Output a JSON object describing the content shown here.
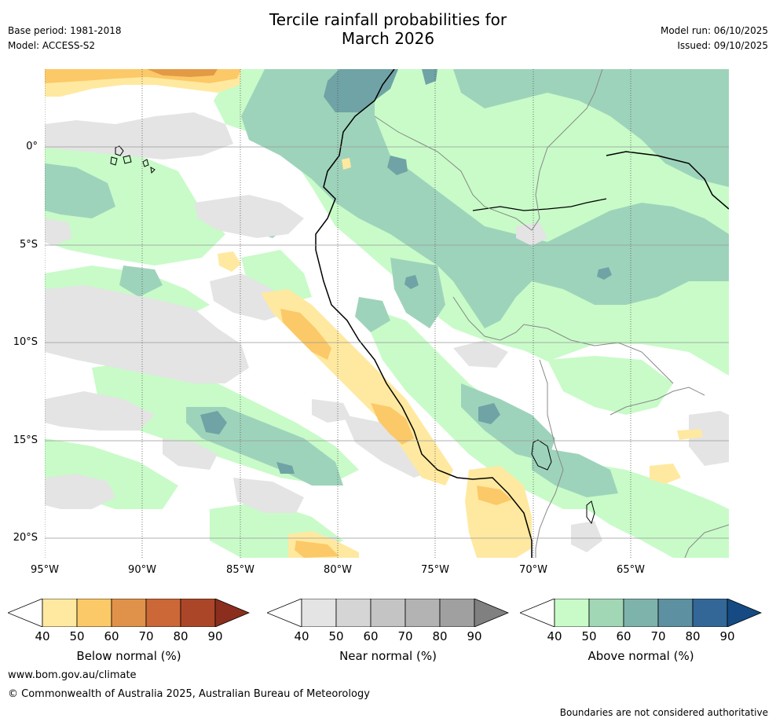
{
  "header": {
    "title_line1": "Tercile rainfall probabilities for",
    "title_line2": "March 2026",
    "base_period": "Base period: 1981-2018",
    "model": "Model: ACCESS-S2",
    "model_run": "Model run: 06/10/2025",
    "issued": "Issued: 09/10/2025"
  },
  "map": {
    "lat_labels": [
      "0°",
      "5°S",
      "10°S",
      "15°S",
      "20°S"
    ],
    "lon_labels": [
      "95°W",
      "90°W",
      "85°W",
      "80°W",
      "75°W",
      "70°W",
      "65°W"
    ],
    "colors": {
      "near_normal": "#e4e4e4",
      "above_40": "#c8fbc8",
      "above_50": "#9ed3bb",
      "above_60": "#6fa3a5",
      "below_40": "#ffe9a0",
      "below_50": "#fcc968",
      "below_60": "#e39a45",
      "country_border": "#888888",
      "coastline": "#000000"
    }
  },
  "colorbars": [
    {
      "label": "Below normal (%)",
      "ticks": [
        "40",
        "50",
        "60",
        "70",
        "80",
        "90"
      ],
      "colors": [
        "#ffe9a0",
        "#fcc968",
        "#e0924a",
        "#cc6737",
        "#ab4728",
        "#8b2e1e"
      ]
    },
    {
      "label": "Near normal (%)",
      "ticks": [
        "40",
        "50",
        "60",
        "70",
        "80",
        "90"
      ],
      "colors": [
        "#e4e4e4",
        "#d5d5d5",
        "#c4c4c4",
        "#b3b3b3",
        "#a0a0a0",
        "#808080"
      ]
    },
    {
      "label": "Above normal (%)",
      "ticks": [
        "40",
        "50",
        "60",
        "70",
        "80",
        "90"
      ],
      "colors": [
        "#c8fbc8",
        "#a2d7b6",
        "#7eb3ab",
        "#5d90a0",
        "#336797",
        "#154b82"
      ]
    }
  ],
  "footer": {
    "website": "www.bom.gov.au/climate",
    "copyright": "© Commonwealth of Australia 2025, Australian Bureau of Meteorology",
    "disclaimer": "Boundaries are not considered authoritative"
  }
}
